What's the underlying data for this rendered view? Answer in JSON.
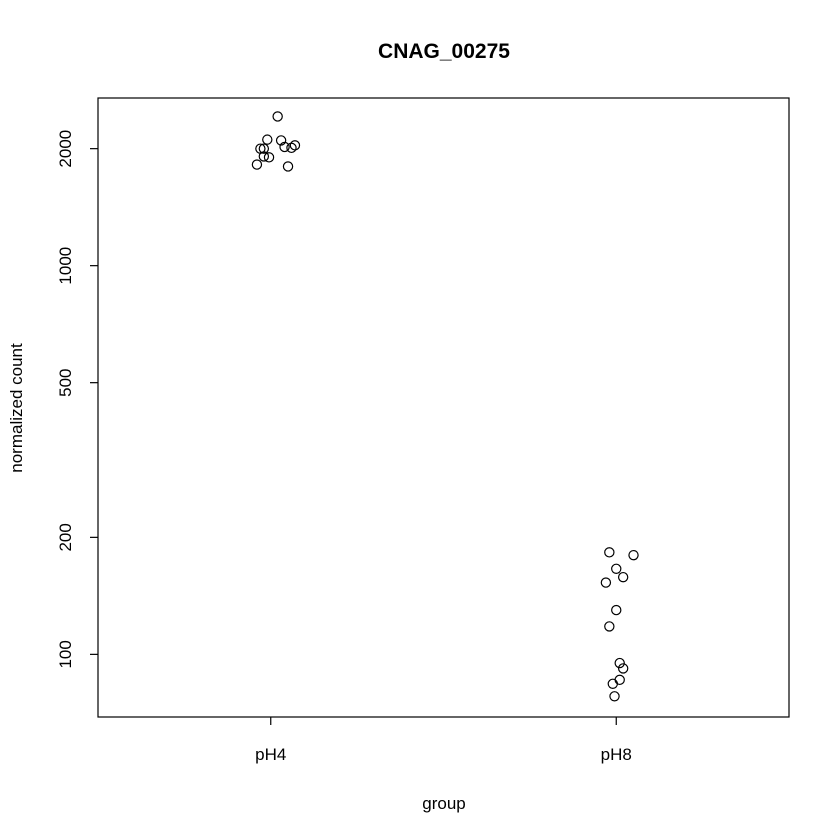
{
  "chart_data": {
    "type": "scatter",
    "title": "CNAG_00275",
    "xlabel": "group",
    "ylabel": "normalized count",
    "y_scale": "log",
    "ylim": [
      69,
      2700
    ],
    "categories": [
      "pH4",
      "pH8"
    ],
    "yticks": [
      100,
      200,
      500,
      1000,
      2000
    ],
    "ytick_labels": [
      "100",
      "200",
      "500",
      "1000",
      "2000"
    ],
    "grid": false,
    "legend": "none",
    "points": [
      {
        "group": "pH4",
        "jitter": 0.02,
        "y": 2420
      },
      {
        "group": "pH4",
        "jitter": -0.01,
        "y": 2110
      },
      {
        "group": "pH4",
        "jitter": 0.03,
        "y": 2100
      },
      {
        "group": "pH4",
        "jitter": 0.07,
        "y": 2040
      },
      {
        "group": "pH4",
        "jitter": 0.04,
        "y": 2020
      },
      {
        "group": "pH4",
        "jitter": 0.06,
        "y": 2010
      },
      {
        "group": "pH4",
        "jitter": -0.03,
        "y": 2000
      },
      {
        "group": "pH4",
        "jitter": -0.02,
        "y": 2000
      },
      {
        "group": "pH4",
        "jitter": -0.02,
        "y": 1910
      },
      {
        "group": "pH4",
        "jitter": -0.005,
        "y": 1900
      },
      {
        "group": "pH4",
        "jitter": -0.04,
        "y": 1820
      },
      {
        "group": "pH4",
        "jitter": 0.05,
        "y": 1800
      },
      {
        "group": "pH8",
        "jitter": -0.02,
        "y": 183
      },
      {
        "group": "pH8",
        "jitter": 0.05,
        "y": 180
      },
      {
        "group": "pH8",
        "jitter": 0.0,
        "y": 166
      },
      {
        "group": "pH8",
        "jitter": 0.02,
        "y": 158
      },
      {
        "group": "pH8",
        "jitter": -0.03,
        "y": 153
      },
      {
        "group": "pH8",
        "jitter": 0.0,
        "y": 130
      },
      {
        "group": "pH8",
        "jitter": -0.02,
        "y": 118
      },
      {
        "group": "pH8",
        "jitter": 0.01,
        "y": 95
      },
      {
        "group": "pH8",
        "jitter": 0.02,
        "y": 92
      },
      {
        "group": "pH8",
        "jitter": 0.01,
        "y": 86
      },
      {
        "group": "pH8",
        "jitter": -0.01,
        "y": 84
      },
      {
        "group": "pH8",
        "jitter": -0.005,
        "y": 78
      }
    ]
  }
}
